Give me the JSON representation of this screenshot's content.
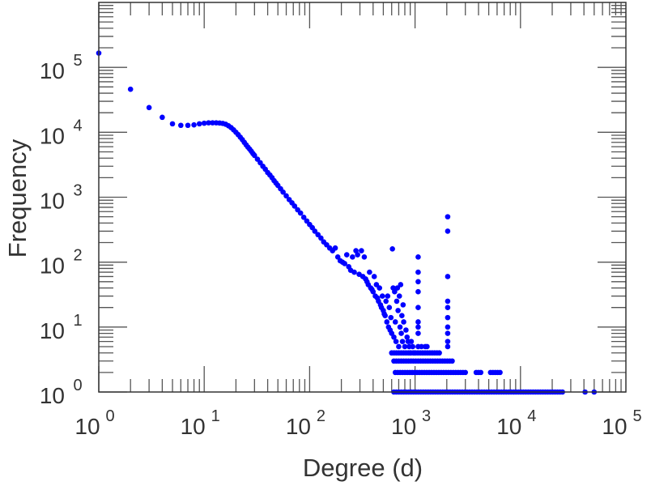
{
  "chart_data": {
    "type": "scatter",
    "title": "",
    "xlabel": "Degree (d)",
    "ylabel": "Frequency",
    "xscale": "log",
    "yscale": "log",
    "xlim": [
      1,
      100000
    ],
    "ylim": [
      1,
      1000000
    ],
    "grid": false,
    "legend": "none",
    "point_color": "#0000ff",
    "x_ticks": [
      {
        "base": "10",
        "exp": "0",
        "value": 1
      },
      {
        "base": "10",
        "exp": "1",
        "value": 10
      },
      {
        "base": "10",
        "exp": "2",
        "value": 100
      },
      {
        "base": "10",
        "exp": "3",
        "value": 1000
      },
      {
        "base": "10",
        "exp": "4",
        "value": 10000
      },
      {
        "base": "10",
        "exp": "5",
        "value": 100000
      }
    ],
    "y_ticks": [
      {
        "base": "10",
        "exp": "0",
        "value": 1
      },
      {
        "base": "10",
        "exp": "1",
        "value": 10
      },
      {
        "base": "10",
        "exp": "2",
        "value": 100
      },
      {
        "base": "10",
        "exp": "3",
        "value": 1000
      },
      {
        "base": "10",
        "exp": "4",
        "value": 10000
      },
      {
        "base": "10",
        "exp": "5",
        "value": 100000
      }
    ],
    "points": [
      [
        1,
        166000
      ],
      [
        2,
        46000
      ],
      [
        3,
        24000
      ],
      [
        4,
        17000
      ],
      [
        5,
        13500
      ],
      [
        6,
        12800
      ],
      [
        7,
        12800
      ],
      [
        8,
        13000
      ],
      [
        9,
        13500
      ],
      [
        10,
        13800
      ],
      [
        11,
        14000
      ],
      [
        12,
        14000
      ],
      [
        13,
        14000
      ],
      [
        14,
        13900
      ],
      [
        15,
        13700
      ],
      [
        16,
        13300
      ],
      [
        17,
        12600
      ],
      [
        18,
        11800
      ],
      [
        19,
        10900
      ],
      [
        20,
        10000
      ],
      [
        21,
        9200
      ],
      [
        22,
        8400
      ],
      [
        23,
        7700
      ],
      [
        24,
        7000
      ],
      [
        25,
        6400
      ],
      [
        26,
        5900
      ],
      [
        27,
        5500
      ],
      [
        28,
        5100
      ],
      [
        29,
        4700
      ],
      [
        30,
        4400
      ],
      [
        32,
        3850
      ],
      [
        34,
        3400
      ],
      [
        36,
        3000
      ],
      [
        38,
        2700
      ],
      [
        40,
        2400
      ],
      [
        42,
        2200
      ],
      [
        44,
        2000
      ],
      [
        46,
        1800
      ],
      [
        48,
        1650
      ],
      [
        50,
        1520
      ],
      [
        53,
        1350
      ],
      [
        56,
        1200
      ],
      [
        60,
        1050
      ],
      [
        64,
        920
      ],
      [
        68,
        820
      ],
      [
        72,
        730
      ],
      [
        77,
        640
      ],
      [
        82,
        570
      ],
      [
        88,
        490
      ],
      [
        94,
        430
      ],
      [
        100,
        380
      ],
      [
        106,
        340
      ],
      [
        112,
        300
      ],
      [
        120,
        265
      ],
      [
        128,
        235
      ],
      [
        136,
        205
      ],
      [
        145,
        185
      ],
      [
        155,
        165
      ],
      [
        165,
        150
      ],
      [
        175,
        165
      ],
      [
        185,
        120
      ],
      [
        195,
        105
      ],
      [
        205,
        100
      ],
      [
        215,
        95
      ],
      [
        225,
        130
      ],
      [
        235,
        85
      ],
      [
        245,
        75
      ],
      [
        255,
        120
      ],
      [
        265,
        70
      ],
      [
        275,
        150
      ],
      [
        285,
        130
      ],
      [
        295,
        65
      ],
      [
        310,
        150
      ],
      [
        320,
        60
      ],
      [
        330,
        120
      ],
      [
        340,
        55
      ],
      [
        350,
        50
      ],
      [
        360,
        45
      ],
      [
        370,
        70
      ],
      [
        380,
        40
      ],
      [
        390,
        38
      ],
      [
        400,
        35
      ],
      [
        410,
        60
      ],
      [
        420,
        30
      ],
      [
        430,
        45
      ],
      [
        440,
        28
      ],
      [
        450,
        25
      ],
      [
        460,
        40
      ],
      [
        470,
        22
      ],
      [
        480,
        20
      ],
      [
        490,
        30
      ],
      [
        500,
        18
      ],
      [
        510,
        16
      ],
      [
        520,
        15
      ],
      [
        530,
        25
      ],
      [
        540,
        12
      ],
      [
        550,
        30
      ],
      [
        560,
        10
      ],
      [
        570,
        20
      ],
      [
        580,
        9
      ],
      [
        590,
        14
      ],
      [
        600,
        8
      ],
      [
        610,
        160
      ],
      [
        620,
        40
      ],
      [
        630,
        7
      ],
      [
        640,
        35
      ],
      [
        650,
        12
      ],
      [
        660,
        6
      ],
      [
        670,
        25
      ],
      [
        680,
        40
      ],
      [
        690,
        18
      ],
      [
        700,
        5
      ],
      [
        710,
        30
      ],
      [
        720,
        10
      ],
      [
        730,
        45
      ],
      [
        740,
        8
      ],
      [
        750,
        15
      ],
      [
        760,
        6
      ],
      [
        770,
        22
      ],
      [
        780,
        12
      ],
      [
        800,
        5
      ],
      [
        820,
        9
      ],
      [
        840,
        7
      ],
      [
        860,
        6
      ],
      [
        880,
        5
      ],
      [
        900,
        4
      ],
      [
        920,
        6
      ],
      [
        950,
        5
      ],
      [
        980,
        4
      ],
      [
        1070,
        120
      ],
      [
        1070,
        70
      ],
      [
        1070,
        50
      ],
      [
        1070,
        35
      ],
      [
        1070,
        20
      ],
      [
        1070,
        12
      ],
      [
        1070,
        10
      ],
      [
        1070,
        8
      ],
      [
        1070,
        5
      ],
      [
        2040,
        500
      ],
      [
        2040,
        300
      ],
      [
        2040,
        60
      ],
      [
        2040,
        25
      ],
      [
        2040,
        20
      ],
      [
        2040,
        14
      ],
      [
        2040,
        10
      ],
      [
        2040,
        8
      ],
      [
        2040,
        6
      ],
      [
        2040,
        5
      ],
      [
        1150,
        5
      ],
      [
        1250,
        5
      ],
      [
        1300,
        5
      ],
      [
        41000,
        1
      ],
      [
        50000,
        1
      ]
    ],
    "rows": [
      {
        "freq": 4,
        "d_min": 600,
        "d_max": 1700
      },
      {
        "freq": 3,
        "d_min": 630,
        "d_max": 2250
      },
      {
        "freq": 2,
        "d_min": 650,
        "d_max": 3000
      },
      {
        "freq": 2,
        "d_min": 3800,
        "d_max": 4200
      },
      {
        "freq": 2,
        "d_min": 5200,
        "d_max": 6400
      },
      {
        "freq": 1,
        "d_min": 630,
        "d_max": 25000
      }
    ]
  }
}
